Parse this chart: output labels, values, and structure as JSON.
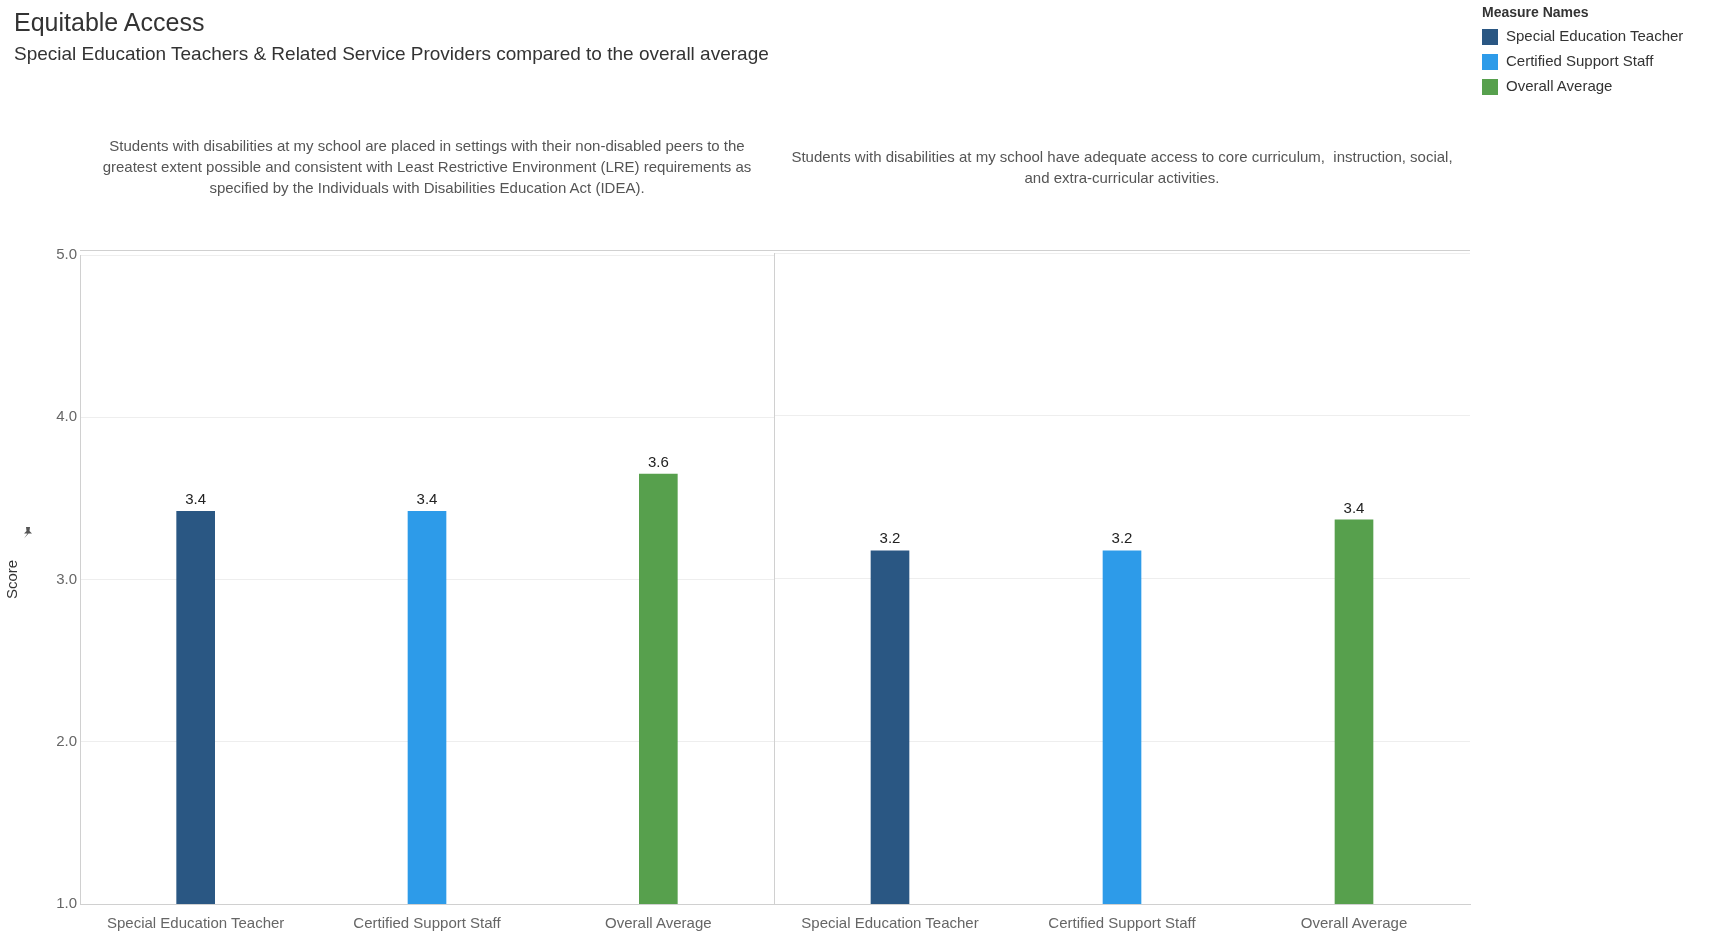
{
  "chart_data": [
    {
      "type": "other",
      "title": "Equitable Access",
      "subtitle": "Special Education Teachers & Related Service Providers compared to the overall average"
    },
    {
      "type": "bar",
      "title": "Students with disabilities at my school are placed in settings with their non-disabled peers to the greatest extent possible and consistent with Least Restrictive Environment (LRE) requirements as specified by the Individuals with Disabilities Education Act (IDEA).",
      "ylabel": "Score",
      "categories": [
        "Special Education Teacher",
        "Certified Support Staff",
        "Overall Average"
      ],
      "series": [
        {
          "color": "#2a5783",
          "values": [
            3.42,
            null,
            null
          ],
          "value_labels": [
            "3.4",
            null,
            null
          ]
        },
        {
          "color": "#2d9be9",
          "values": [
            null,
            3.42,
            null
          ],
          "value_labels": [
            null,
            "3.4",
            null
          ]
        },
        {
          "color": "#57a04d",
          "values": [
            null,
            null,
            3.65
          ],
          "value_labels": [
            null,
            null,
            "3.6"
          ]
        }
      ],
      "ylim": [
        1,
        5
      ],
      "yticks": [
        {
          "value": 1,
          "label": "1.0"
        },
        {
          "value": 2,
          "label": "2.0"
        },
        {
          "value": 3,
          "label": "3.0"
        },
        {
          "value": 4,
          "label": "4.0"
        },
        {
          "value": 5,
          "label": "5.0"
        }
      ],
      "grid": "y"
    },
    {
      "type": "bar",
      "title": "Students with disabilities at my school have adequate access to core curriculum,  instruction, social,  and extra-curricular activities.",
      "categories": [
        "Special Education Teacher",
        "Certified Support Staff",
        "Overall Average"
      ],
      "series": [
        {
          "name": "Special Education Teacher",
          "color": "#2a5783",
          "values": [
            3.17,
            null,
            null
          ],
          "value_labels": [
            "3.2",
            null,
            null
          ]
        },
        {
          "name": "Certified Support Staff",
          "color": "#2d9be9",
          "values": [
            null,
            3.17,
            null
          ],
          "value_labels": [
            null,
            "3.2",
            null
          ]
        },
        {
          "name": "Overall Average",
          "color": "#57a04d",
          "values": [
            null,
            null,
            3.36
          ],
          "value_labels": [
            null,
            null,
            "3.4"
          ]
        }
      ],
      "ylim": [
        1,
        5
      ],
      "yticks": [
        1,
        2,
        3,
        4,
        5
      ],
      "grid": "y",
      "tick_labels": "x",
      "legend": "top right",
      "legend_title": "Measure Names"
    }
  ]
}
